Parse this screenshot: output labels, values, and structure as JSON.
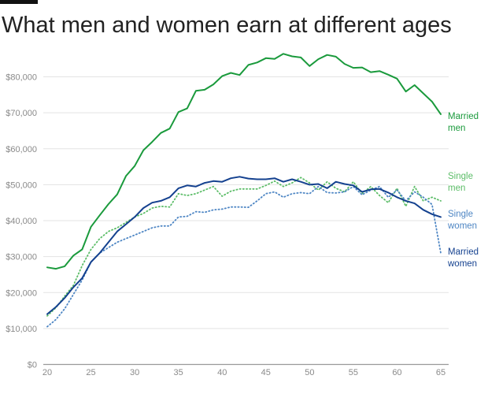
{
  "chart_data": {
    "type": "line",
    "title": "What men and women earn at different ages",
    "xlabel": "",
    "ylabel": "",
    "xlim": [
      20,
      65
    ],
    "ylim": [
      0,
      90000
    ],
    "x_ticks": [
      "20",
      "25",
      "30",
      "35",
      "40",
      "45",
      "50",
      "55",
      "60",
      "65"
    ],
    "y_ticks": [
      "$0",
      "$10,000",
      "$20,000",
      "$30,000",
      "$40,000",
      "$50,000",
      "$60,000",
      "$70,000",
      "$80,000"
    ],
    "grid": true,
    "legend": "inline-right",
    "x": [
      20,
      21,
      22,
      23,
      24,
      25,
      26,
      27,
      28,
      29,
      30,
      31,
      32,
      33,
      34,
      35,
      36,
      37,
      38,
      39,
      40,
      41,
      42,
      43,
      44,
      45,
      46,
      47,
      48,
      49,
      50,
      51,
      52,
      53,
      54,
      55,
      56,
      57,
      58,
      59,
      60,
      61,
      62,
      63,
      64,
      65
    ],
    "series": [
      {
        "name": "Married men",
        "label_lines": [
          "Married",
          "men"
        ],
        "color": "#1a9a3c",
        "style": "solid",
        "values": [
          27000,
          26600,
          27300,
          30300,
          32000,
          38300,
          41500,
          44600,
          47300,
          52400,
          55200,
          59600,
          61900,
          64400,
          65600,
          70200,
          71200,
          76100,
          76400,
          77900,
          80200,
          81100,
          80500,
          83300,
          84000,
          85200,
          85000,
          86400,
          85700,
          85400,
          83000,
          84900,
          86100,
          85600,
          83600,
          82500,
          82600,
          81300,
          81600,
          80600,
          79500,
          75900,
          77700,
          75400,
          73100,
          69600
        ]
      },
      {
        "name": "Single men",
        "label_lines": [
          "Single",
          "men"
        ],
        "color": "#5cbd68",
        "style": "dotted",
        "values": [
          13500,
          15800,
          19000,
          22000,
          27500,
          32000,
          35000,
          37000,
          38000,
          39500,
          41000,
          42000,
          43500,
          44000,
          43800,
          47500,
          47000,
          47500,
          48500,
          49500,
          46800,
          48200,
          48800,
          48800,
          48800,
          49800,
          51000,
          49500,
          50500,
          52000,
          50500,
          48500,
          50800,
          49000,
          48000,
          50800,
          47500,
          49500,
          47000,
          45000,
          49000,
          44000,
          49500,
          45500,
          46500,
          45500
        ]
      },
      {
        "name": "Single women",
        "label_lines": [
          "Single",
          "women"
        ],
        "color": "#4e86c4",
        "style": "dotted",
        "values": [
          10500,
          12500,
          15500,
          19500,
          23500,
          28500,
          31000,
          32500,
          34000,
          35000,
          36000,
          37000,
          38000,
          38500,
          38500,
          41000,
          41200,
          42500,
          42300,
          43000,
          43200,
          43800,
          43800,
          43700,
          45500,
          47500,
          48000,
          46500,
          47500,
          47800,
          47500,
          49500,
          47800,
          47700,
          48000,
          49500,
          47200,
          48500,
          49500,
          46500,
          48500,
          45500,
          48000,
          46500,
          44500,
          31000
        ]
      },
      {
        "name": "Married women",
        "label_lines": [
          "Married",
          "women"
        ],
        "color": "#14418f",
        "style": "solid",
        "values": [
          14000,
          16000,
          18500,
          21500,
          24000,
          28500,
          31000,
          34000,
          37000,
          39000,
          41000,
          43500,
          45000,
          45500,
          46500,
          49000,
          49800,
          49500,
          50500,
          51000,
          50800,
          51800,
          52200,
          51700,
          51500,
          51500,
          51800,
          50800,
          51500,
          50800,
          50000,
          50200,
          49000,
          50800,
          50200,
          49800,
          48000,
          48700,
          48800,
          47800,
          46500,
          45500,
          44800,
          43000,
          41800,
          41000
        ]
      }
    ]
  }
}
